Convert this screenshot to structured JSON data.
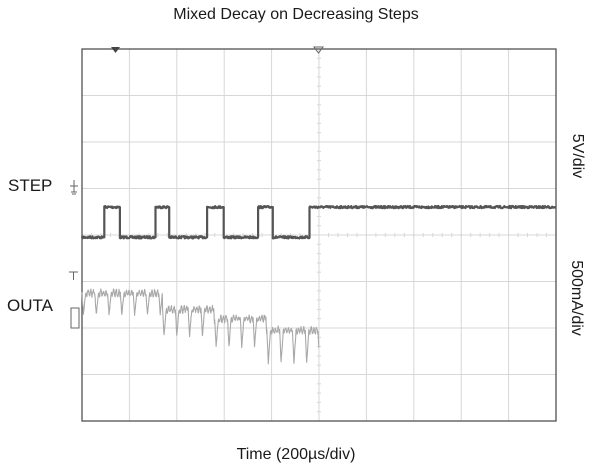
{
  "chart_data": {
    "type": "line",
    "title": "Mixed Decay on Decreasing Steps",
    "xlabel": "Time (200µs/div)",
    "x_unit": "µs",
    "x_per_div": 200,
    "divisions": {
      "x": 10,
      "y": 8
    },
    "grid": true,
    "colors": {
      "grid": "#d7d7d7",
      "frame": "#444444",
      "step_trace": "#555555",
      "outa_trace": "#a8a8a8",
      "markers": "#666666"
    },
    "channels": [
      {
        "name": "STEP",
        "scale_label": "5V/div",
        "color": "#555555",
        "low_div": 3.95,
        "high_div": 4.6,
        "transitions_us": [
          94,
          160,
          310,
          368,
          528,
          598,
          743,
          805,
          960
        ],
        "initial_state": "low"
      },
      {
        "name": "OUTA",
        "scale_label": "500mA/div",
        "color": "#a8a8a8",
        "period_us": 54,
        "levels": [
          {
            "from_us": 0,
            "to_us": 340,
            "plateau_div": 2.75,
            "dip_div": 0.5
          },
          {
            "from_us": 340,
            "to_us": 560,
            "plateau_div": 2.4,
            "dip_div": 0.6
          },
          {
            "from_us": 560,
            "to_us": 780,
            "plateau_div": 2.2,
            "dip_div": 0.65
          },
          {
            "from_us": 780,
            "to_us": 1000,
            "plateau_div": 1.95,
            "dip_div": 0.75
          }
        ]
      }
    ]
  }
}
